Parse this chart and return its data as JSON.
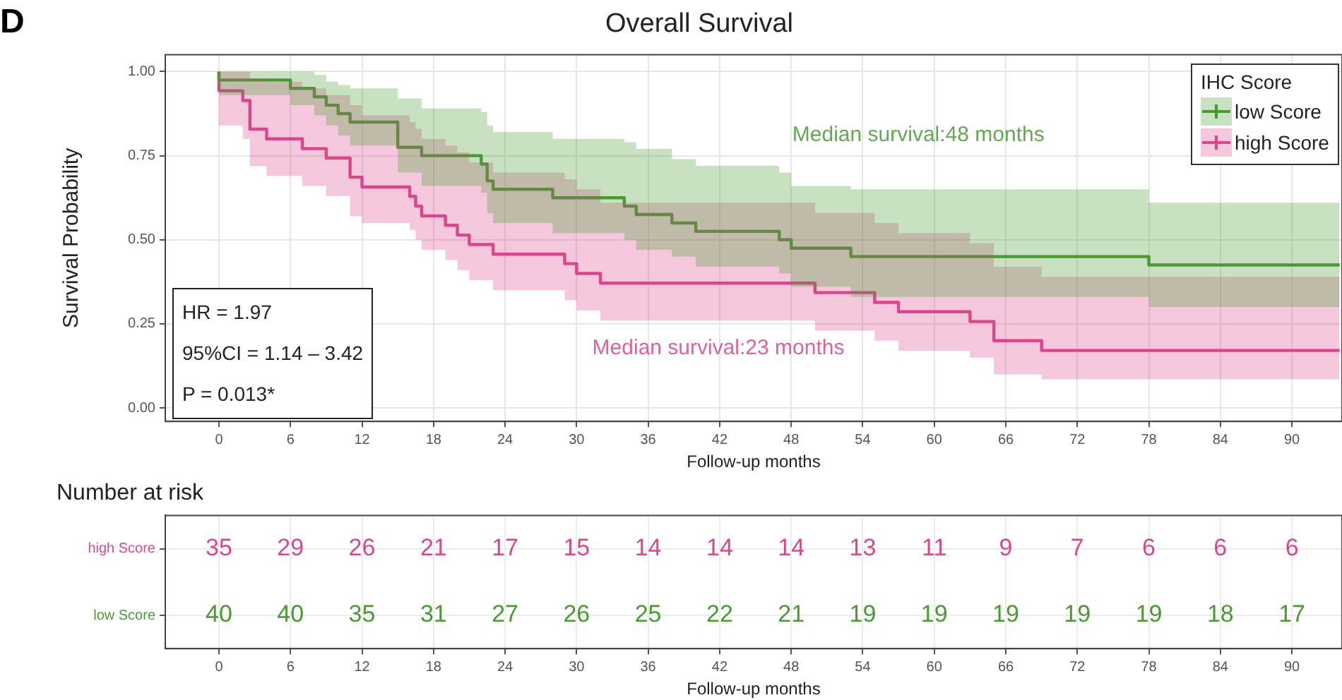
{
  "chart_data": [
    {
      "type": "step",
      "title": "Overall Survival",
      "xlabel": "Follow-up months",
      "ylabel": "Survival Probability",
      "legend_title": "IHC Score",
      "legend": "top right",
      "grid": true,
      "line_style": "solid",
      "marker": "none",
      "xlim": [
        -4.5,
        94.2
      ],
      "xticks": [
        0,
        6,
        12,
        18,
        24,
        30,
        36,
        42,
        48,
        54,
        60,
        66,
        72,
        78,
        84,
        90
      ],
      "ylim": [
        -0.04,
        1.05
      ],
      "yticks": [
        {
          "value": 0,
          "label": "0.00"
        },
        {
          "value": 0.25,
          "label": "0.25"
        },
        {
          "value": 0.5,
          "label": "0.50"
        },
        {
          "value": 0.75,
          "label": "0.75"
        },
        {
          "value": 1,
          "label": "1.00"
        }
      ],
      "series": [
        {
          "name": "low Score",
          "color": "#4a9a33",
          "x": [
            0,
            6,
            8,
            9,
            10,
            11,
            15,
            17,
            22,
            22.5,
            23,
            28,
            34,
            35,
            38,
            40,
            47,
            48,
            53,
            78,
            85,
            94
          ],
          "values": [
            1,
            0.975,
            0.95,
            0.925,
            0.9,
            0.875,
            0.85,
            0.775,
            0.75,
            0.725,
            0.675,
            0.65,
            0.625,
            0.6,
            0.575,
            0.55,
            0.525,
            0.5,
            0.475,
            0.45,
            0.425,
            0.425
          ],
          "upper": [
            1,
            1,
            1,
            0.99,
            0.97,
            0.96,
            0.95,
            0.92,
            0.89,
            0.88,
            0.84,
            0.82,
            0.8,
            0.79,
            0.77,
            0.74,
            0.72,
            0.7,
            0.66,
            0.65,
            0.61,
            0.61
          ],
          "lower": [
            1,
            0.93,
            0.9,
            0.87,
            0.84,
            0.81,
            0.78,
            0.7,
            0.66,
            0.64,
            0.58,
            0.55,
            0.52,
            0.5,
            0.47,
            0.45,
            0.42,
            0.4,
            0.36,
            0.33,
            0.3,
            0.3
          ]
        },
        {
          "name": "high Score",
          "color": "#d9478f",
          "x": [
            0,
            2,
            2.6,
            4,
            7,
            9,
            11,
            12,
            16,
            16.5,
            17,
            19,
            20,
            21,
            23,
            29,
            30,
            32,
            50,
            55,
            57,
            63,
            65,
            69,
            74,
            94
          ],
          "values": [
            1,
            0.943,
            0.914,
            0.829,
            0.8,
            0.771,
            0.743,
            0.686,
            0.657,
            0.629,
            0.6,
            0.571,
            0.543,
            0.514,
            0.486,
            0.457,
            0.429,
            0.4,
            0.371,
            0.343,
            0.314,
            0.286,
            0.257,
            0.2,
            0.171,
            0.171
          ],
          "upper": [
            1,
            1,
            1,
            0.98,
            0.97,
            0.95,
            0.93,
            0.9,
            0.87,
            0.85,
            0.83,
            0.8,
            0.78,
            0.76,
            0.73,
            0.7,
            0.68,
            0.65,
            0.61,
            0.58,
            0.55,
            0.52,
            0.49,
            0.42,
            0.39,
            0.39
          ],
          "lower": [
            1,
            0.84,
            0.8,
            0.72,
            0.69,
            0.66,
            0.63,
            0.57,
            0.55,
            0.53,
            0.5,
            0.47,
            0.44,
            0.41,
            0.38,
            0.35,
            0.32,
            0.29,
            0.26,
            0.23,
            0.2,
            0.17,
            0.15,
            0.1,
            0.085,
            0.085
          ]
        }
      ],
      "annotations": [
        "Median survival:48 months",
        "Median survival:23 months",
        "D",
        "HR = 1.97",
        "95%CI = 1.14 – 3.42",
        "P = 0.013*"
      ]
    },
    {
      "type": "heatmap",
      "title": "Number at risk",
      "xlabel": "Follow-up months",
      "data_labels": true,
      "grid": true,
      "x": [
        0,
        6,
        12,
        18,
        24,
        30,
        36,
        42,
        48,
        54,
        60,
        66,
        72,
        78,
        84,
        90
      ],
      "xlim": [
        -4.5,
        94.2
      ],
      "xticks": [
        0,
        6,
        12,
        18,
        24,
        30,
        36,
        42,
        48,
        54,
        60,
        66,
        72,
        78,
        84,
        90
      ],
      "y_categories": [
        "high Score",
        "low Score"
      ],
      "colors": [
        "#d9478f",
        "#4a9a33"
      ],
      "cells": [
        [
          35,
          29,
          26,
          21,
          17,
          15,
          14,
          14,
          14,
          13,
          11,
          9,
          7,
          6,
          6,
          6
        ],
        [
          40,
          40,
          35,
          31,
          27,
          26,
          25,
          22,
          21,
          19,
          19,
          19,
          19,
          19,
          18,
          17
        ]
      ]
    }
  ]
}
